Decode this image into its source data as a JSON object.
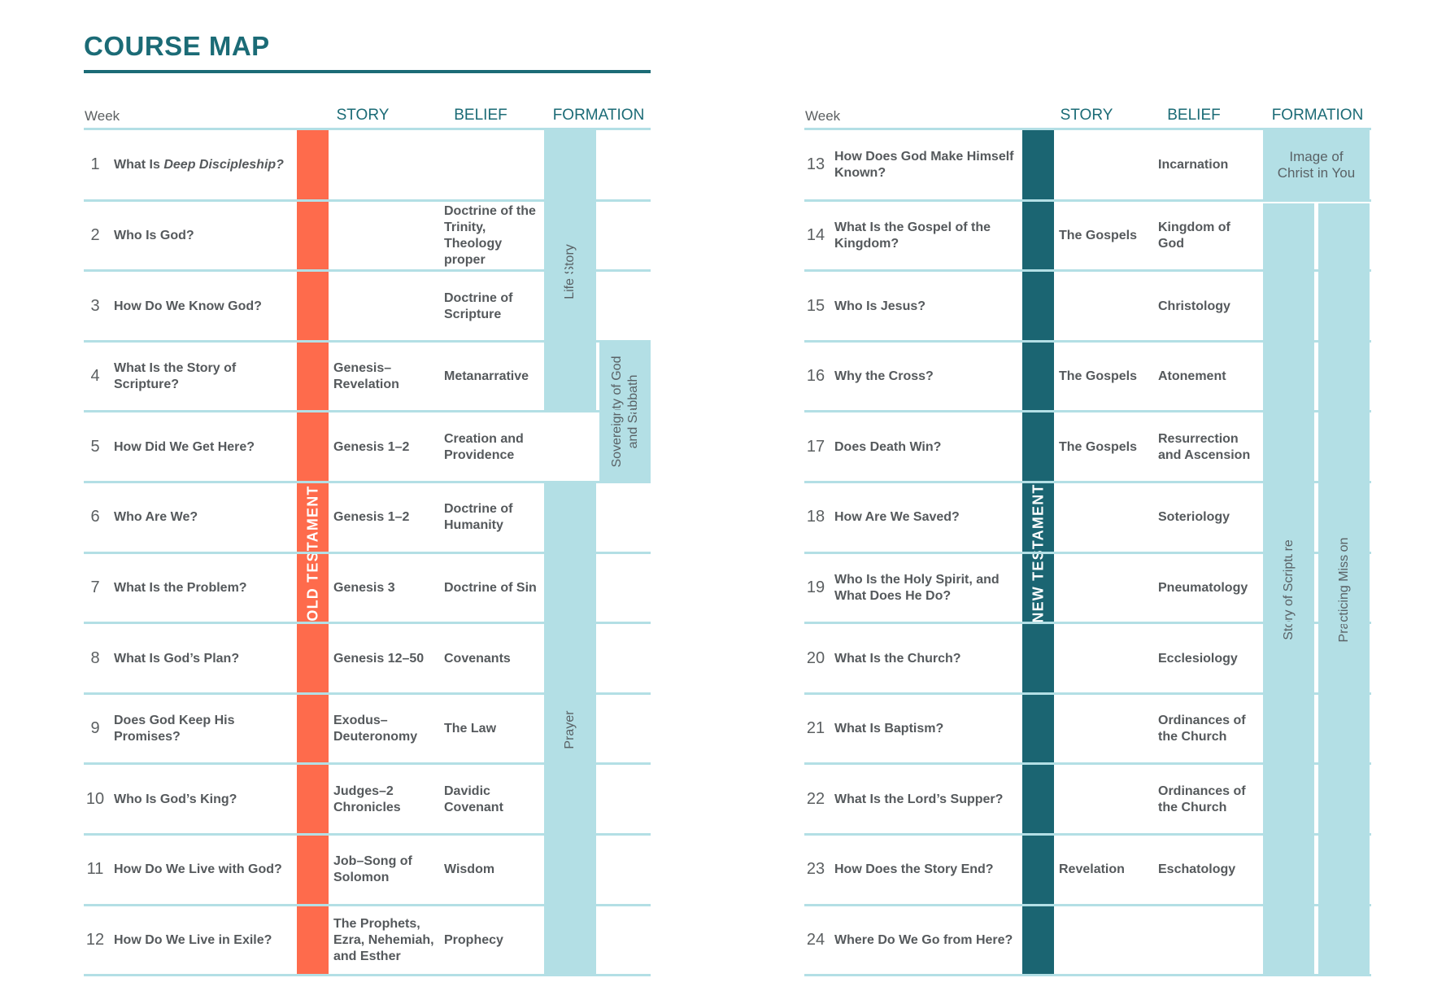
{
  "title": "COURSE MAP",
  "headers": {
    "week": "Week",
    "story": "STORY",
    "belief": "BELIEF",
    "formation": "FORMATION"
  },
  "old_testament": {
    "band": "OLD TESTAMENT",
    "formation": {
      "life_story": "Life Story",
      "sovereignty": "Sovereignty of God and Sabbath",
      "prayer": "Prayer"
    },
    "rows": [
      {
        "week": "1",
        "question_pre": "What Is ",
        "question_em": "Deep Discipleship?",
        "story": "",
        "belief": ""
      },
      {
        "week": "2",
        "question": "Who Is God?",
        "story": "",
        "belief": "Doctrine of the Trinity, Theology proper"
      },
      {
        "week": "3",
        "question": "How Do We Know God?",
        "story": "",
        "belief": "Doctrine of Scripture"
      },
      {
        "week": "4",
        "question": "What Is the Story of Scripture?",
        "story": "Genesis–Revelation",
        "belief": "Metanarrative"
      },
      {
        "week": "5",
        "question": "How Did We Get Here?",
        "story": "Genesis 1–2",
        "belief": "Creation and Providence"
      },
      {
        "week": "6",
        "question": "Who Are We?",
        "story": "Genesis 1–2",
        "belief": "Doctrine of Humanity"
      },
      {
        "week": "7",
        "question": "What Is the Problem?",
        "story": "Genesis 3",
        "belief": "Doctrine of Sin"
      },
      {
        "week": "8",
        "question": "What Is God’s Plan?",
        "story": "Genesis 12–50",
        "belief": "Covenants"
      },
      {
        "week": "9",
        "question": "Does God Keep His Promises?",
        "story": "Exodus–Deuteronomy",
        "belief": "The Law"
      },
      {
        "week": "10",
        "question": "Who Is God’s King?",
        "story": "Judges–2 Chronicles",
        "belief": "Davidic Covenant"
      },
      {
        "week": "11",
        "question": "How Do We Live with God?",
        "story": "Job–Song of Solomon",
        "belief": "Wisdom"
      },
      {
        "week": "12",
        "question": "How Do We Live in Exile?",
        "story": "The Prophets, Ezra, Nehemiah, and Esther",
        "belief": "Prophecy"
      }
    ]
  },
  "new_testament": {
    "band": "NEW TESTAMENT",
    "formation": {
      "image_of_christ": "Image of Christ in You",
      "story_of_scripture": "Story of Scripture",
      "practicing_mission": "Practicing Mission"
    },
    "rows": [
      {
        "week": "13",
        "question": "How Does God Make Himself Known?",
        "story": "",
        "belief": "Incarnation"
      },
      {
        "week": "14",
        "question": "What Is the Gospel of the Kingdom?",
        "story": "The Gospels",
        "belief": "Kingdom of God"
      },
      {
        "week": "15",
        "question": "Who Is Jesus?",
        "story": "",
        "belief": "Christology"
      },
      {
        "week": "16",
        "question": "Why the Cross?",
        "story": "The Gospels",
        "belief": "Atonement"
      },
      {
        "week": "17",
        "question": "Does Death Win?",
        "story": "The Gospels",
        "belief": "Resurrection and Ascension"
      },
      {
        "week": "18",
        "question": "How Are We Saved?",
        "story": "",
        "belief": "Soteriology"
      },
      {
        "week": "19",
        "question": "Who Is the Holy Spirit, and What Does He Do?",
        "story": "",
        "belief": "Pneumatology"
      },
      {
        "week": "20",
        "question": "What Is the Church?",
        "story": "",
        "belief": "Ecclesiology"
      },
      {
        "week": "21",
        "question": "What Is Baptism?",
        "story": "",
        "belief": "Ordinances of the Church"
      },
      {
        "week": "22",
        "question": "What Is the Lord’s Supper?",
        "story": "",
        "belief": "Ordinances of the Church"
      },
      {
        "week": "23",
        "question": "How Does the Story End?",
        "story": "Revelation",
        "belief": "Eschatology"
      },
      {
        "week": "24",
        "question": "Where Do We Go from Here?",
        "story": "",
        "belief": ""
      }
    ]
  }
}
